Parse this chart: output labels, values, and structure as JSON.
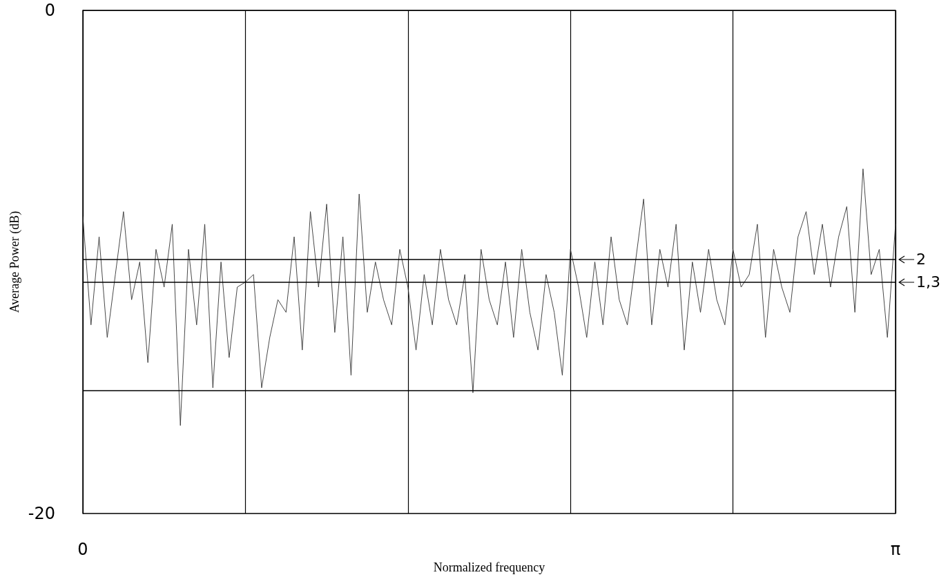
{
  "chart_data": {
    "type": "line",
    "xlabel": "Normalized frequency",
    "ylabel": "Average Power (dB)",
    "categories": [
      "0",
      null,
      null,
      null,
      null,
      null,
      null,
      null,
      null,
      null,
      null,
      null,
      null,
      null,
      null,
      null,
      null,
      null,
      null,
      null,
      null,
      null,
      null,
      null,
      null,
      null,
      null,
      null,
      null,
      null,
      null,
      null,
      null,
      null,
      null,
      null,
      null,
      null,
      null,
      null,
      null,
      null,
      null,
      null,
      null,
      null,
      null,
      null,
      null,
      null,
      null,
      null,
      null,
      null,
      null,
      null,
      null,
      null,
      null,
      null,
      null,
      null,
      null,
      null,
      null,
      null,
      null,
      null,
      null,
      null,
      null,
      null,
      null,
      null,
      null,
      null,
      null,
      null,
      null,
      null,
      null,
      null,
      null,
      null,
      null,
      null,
      null,
      null,
      null,
      null,
      null,
      null,
      null,
      null,
      null,
      null,
      null,
      null,
      null,
      null,
      "π"
    ],
    "series": [
      {
        "color": "#333333",
        "values": [
          -8.2,
          -12.5,
          -9.0,
          -13.0,
          -10.5,
          -8.0,
          -11.5,
          -10.0,
          -14.0,
          -9.5,
          -11.0,
          -8.5,
          -16.5,
          -9.5,
          -12.5,
          -8.5,
          -15.0,
          -10.0,
          -13.8,
          -11.0,
          -10.8,
          -10.5,
          -15.0,
          -13.0,
          -11.5,
          -12.0,
          -9.0,
          -13.5,
          -8.0,
          -11.0,
          -7.7,
          -12.8,
          -9.0,
          -14.5,
          -7.3,
          -12.0,
          -10.0,
          -11.5,
          -12.5,
          -9.5,
          -11.0,
          -13.5,
          -10.5,
          -12.5,
          -9.5,
          -11.5,
          -12.5,
          -10.5,
          -15.2,
          -9.5,
          -11.5,
          -12.5,
          -10.0,
          -13.0,
          -9.5,
          -12.0,
          -13.5,
          -10.5,
          -12.0,
          -14.5,
          -9.5,
          -11.0,
          -13.0,
          -10.0,
          -12.5,
          -9.0,
          -11.5,
          -12.5,
          -10.0,
          -7.5,
          -12.5,
          -9.5,
          -11.0,
          -8.5,
          -13.5,
          -10.0,
          -12.0,
          -9.5,
          -11.5,
          -12.5,
          -9.5,
          -11.0,
          -10.5,
          -8.5,
          -13.0,
          -9.5,
          -11.0,
          -12.0,
          -9.0,
          -8.0,
          -10.5,
          -8.5,
          -11.0,
          -9.0,
          -7.8,
          -12.0,
          -6.3,
          -10.5,
          -9.5,
          -13.0,
          -8.5
        ]
      }
    ],
    "ylim": [
      -20,
      0
    ],
    "yticks": [
      0,
      -20
    ],
    "grid": "x",
    "marker": "none",
    "line_style": "solid",
    "ref_lines": [
      {
        "axis": "y",
        "value": -9.9
      },
      {
        "axis": "y",
        "value": -10.8
      },
      {
        "axis": "y",
        "value": -15.1
      }
    ],
    "annotations": [
      "2",
      "1,3"
    ]
  }
}
